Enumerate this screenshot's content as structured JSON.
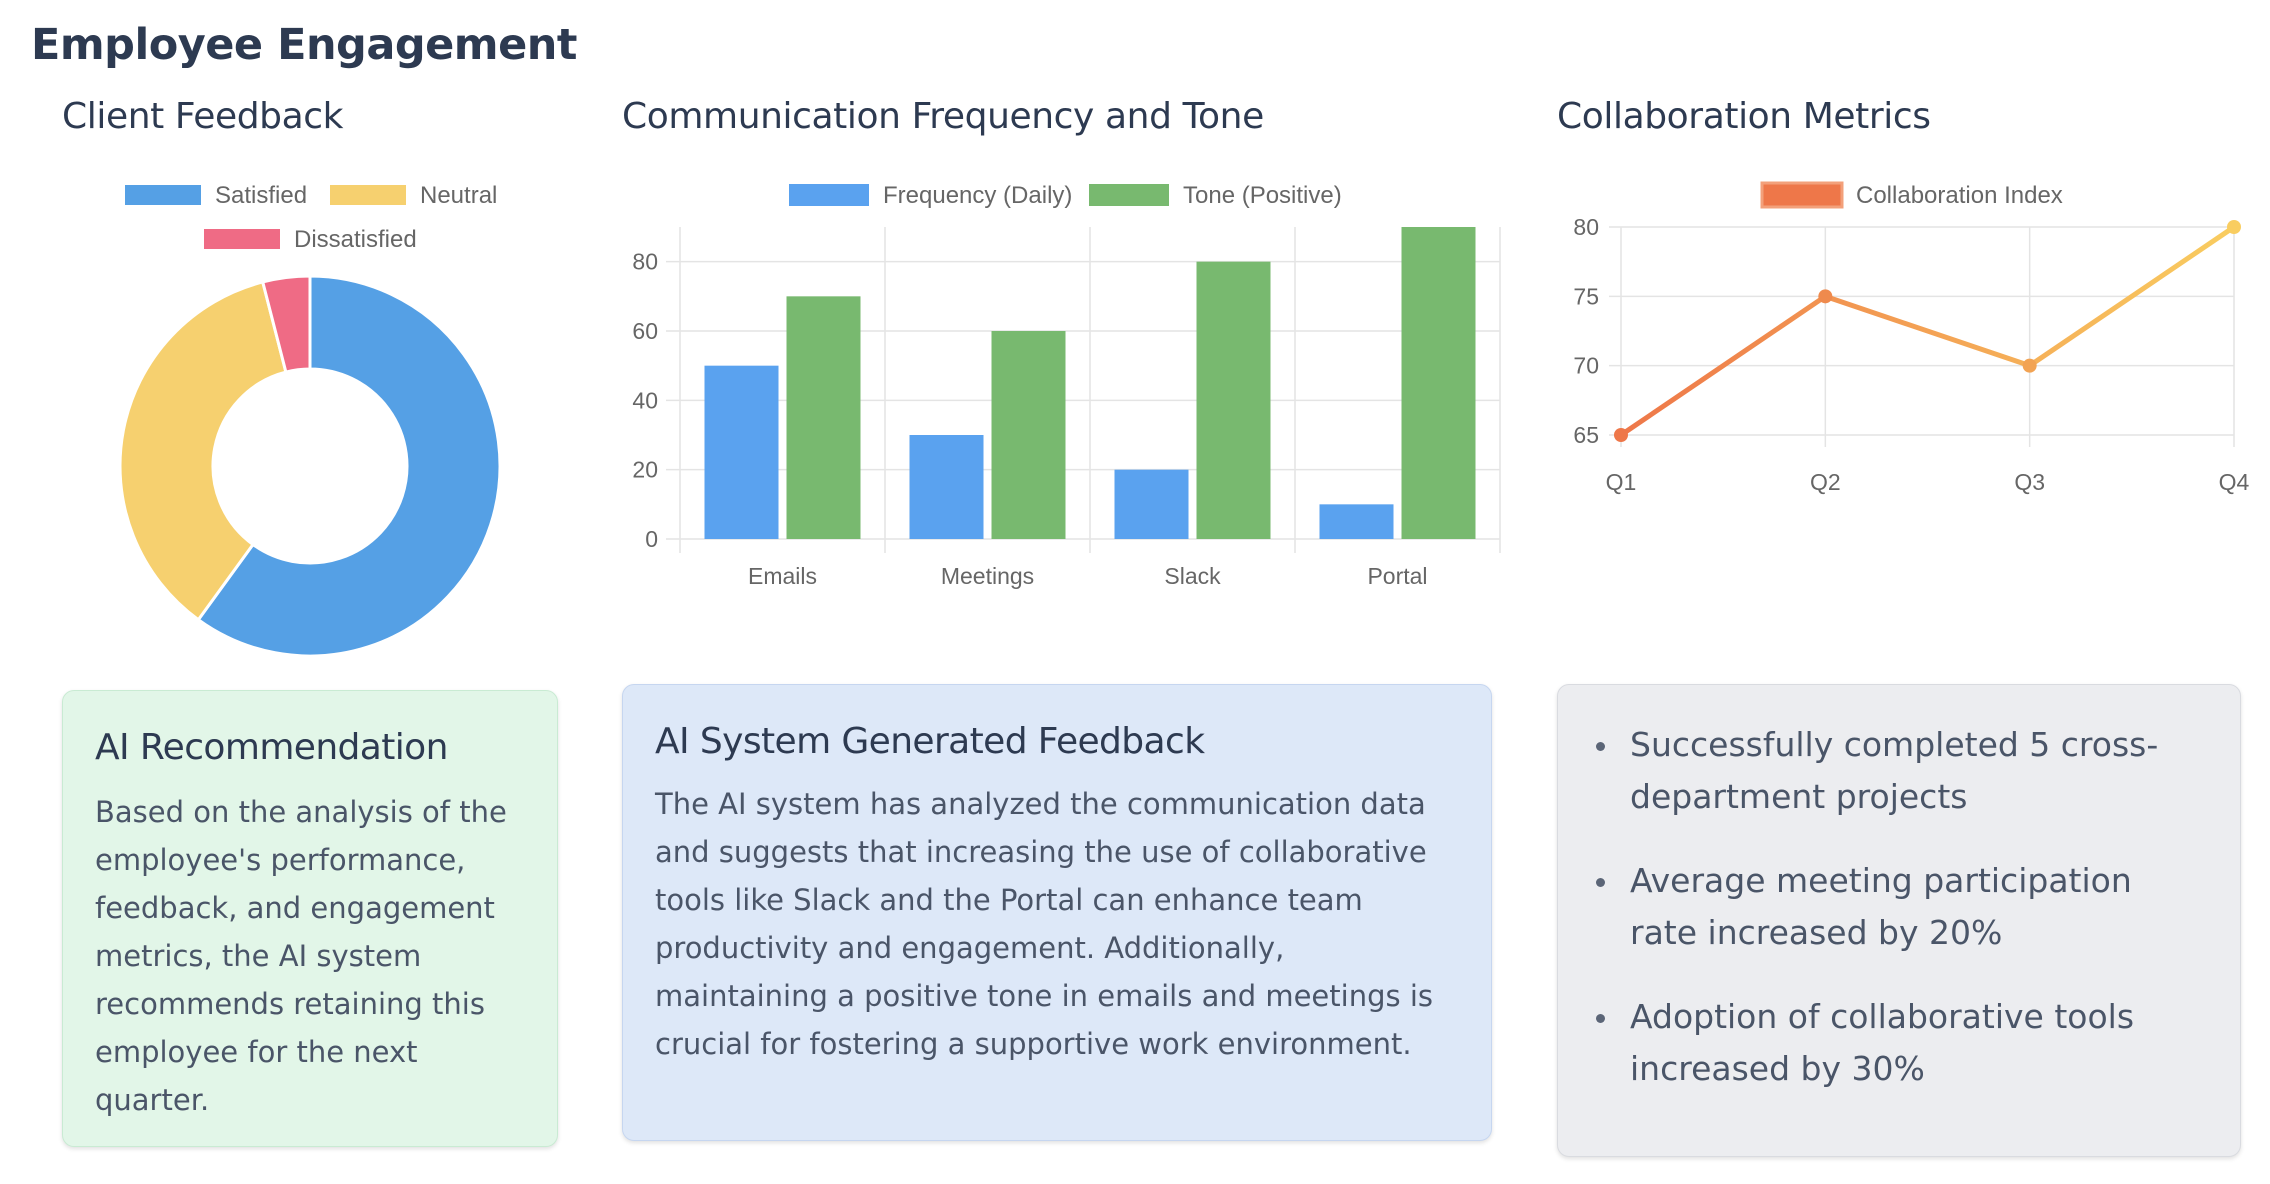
{
  "page": {
    "title": "Employee Engagement"
  },
  "panels": {
    "client_feedback": {
      "title": "Client Feedback"
    },
    "communication": {
      "title": "Communication Frequency and Tone"
    },
    "collaboration": {
      "title": "Collaboration Metrics"
    }
  },
  "chart_data": [
    {
      "type": "pie",
      "variant": "doughnut",
      "labels": [
        "Satisfied",
        "Neutral",
        "Dissatisfied"
      ],
      "values": [
        60,
        36,
        4
      ],
      "colors": [
        "#55a0e5",
        "#f6d06f",
        "#ef6b85"
      ],
      "legend_position": "top"
    },
    {
      "type": "bar",
      "categories": [
        "Emails",
        "Meetings",
        "Slack",
        "Portal"
      ],
      "series": [
        {
          "name": "Frequency (Daily)",
          "values": [
            50,
            30,
            20,
            10
          ],
          "color": "#5aa2ef"
        },
        {
          "name": "Tone (Positive)",
          "values": [
            70,
            60,
            80,
            90
          ],
          "color": "#78b96f"
        }
      ],
      "ylim": [
        0,
        90
      ],
      "yticks": [
        "0",
        "20",
        "40",
        "60",
        "80"
      ],
      "grid": true,
      "legend_position": "top"
    },
    {
      "type": "line",
      "categories": [
        "Q1",
        "Q2",
        "Q3",
        "Q4"
      ],
      "series": [
        {
          "name": "Collaboration Index",
          "values": [
            65,
            75,
            70,
            80
          ]
        }
      ],
      "colors": {
        "start": "#ee7749",
        "end": "#f9cd60"
      },
      "ylim": [
        65,
        80
      ],
      "yticks": [
        "65",
        "70",
        "75",
        "80"
      ],
      "grid": true,
      "legend_position": "top"
    }
  ],
  "recommendation": {
    "title": "AI Recommendation",
    "body": "Based on the analysis of the employee's performance, feedback, and engagement metrics, the AI system recommends retaining this employee for the next quarter."
  },
  "feedback": {
    "title": "AI System Generated Feedback",
    "body": "The AI system has analyzed the communication data and suggests that increasing the use of collaborative tools like Slack and the Portal can enhance team productivity and engagement. Additionally, maintaining a positive tone in emails and meetings is crucial for fostering a supportive work environment."
  },
  "highlights": {
    "items": [
      "Successfully completed 5 cross-department projects",
      "Average meeting participation rate increased by 20%",
      "Adoption of collaborative tools increased by 30%"
    ]
  }
}
